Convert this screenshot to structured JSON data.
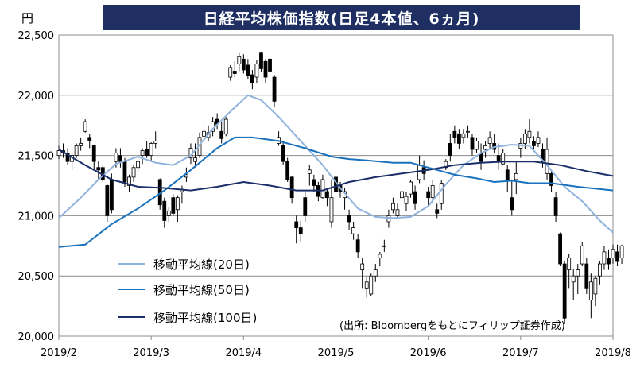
{
  "chart_data": {
    "type": "candlestick",
    "title": "日経平均株価指数(日足4本値、6ヵ月)",
    "unit": "円",
    "source_note": "(出所: Bloombergをもとにフィリップ証券作成)",
    "ylim": [
      20000,
      22500
    ],
    "y_ticks": [
      "20,000",
      "20,500",
      "21,000",
      "21,500",
      "22,000",
      "22,500"
    ],
    "y_tick_values": [
      20000,
      20500,
      21000,
      21500,
      22000,
      22500
    ],
    "x_ticks": [
      "2019/2",
      "2019/3",
      "2019/4",
      "2019/5",
      "2019/6",
      "2019/7",
      "2019/8"
    ],
    "x_tick_positions": [
      0,
      21,
      42,
      63,
      84,
      105,
      126
    ],
    "x_count": 127,
    "grid": "horizontal",
    "legend_position": "bottom-left",
    "colors": {
      "up": "#ffffff",
      "down": "#000000",
      "ma20": "#8fb3dd",
      "ma50": "#1a72bd",
      "ma100": "#1a2f68",
      "title_bg": "#1f2f62"
    },
    "series": [
      {
        "name": "移動平均線(20日)",
        "color": "#8fb3dd",
        "points": [
          [
            0,
            20980
          ],
          [
            5,
            21150
          ],
          [
            9,
            21300
          ],
          [
            13,
            21430
          ],
          [
            18,
            21490
          ],
          [
            22,
            21440
          ],
          [
            26,
            21420
          ],
          [
            30,
            21500
          ],
          [
            35,
            21720
          ],
          [
            40,
            21900
          ],
          [
            43,
            22000
          ],
          [
            46,
            21960
          ],
          [
            50,
            21820
          ],
          [
            55,
            21620
          ],
          [
            60,
            21420
          ],
          [
            64,
            21230
          ],
          [
            68,
            21060
          ],
          [
            72,
            20990
          ],
          [
            76,
            20980
          ],
          [
            80,
            20990
          ],
          [
            84,
            21080
          ],
          [
            88,
            21260
          ],
          [
            92,
            21420
          ],
          [
            96,
            21520
          ],
          [
            99,
            21570
          ],
          [
            103,
            21590
          ],
          [
            107,
            21580
          ],
          [
            111,
            21420
          ],
          [
            115,
            21240
          ],
          [
            119,
            21120
          ],
          [
            123,
            20960
          ],
          [
            126,
            20860
          ]
        ]
      },
      {
        "name": "移動平均線(50日)",
        "color": "#1a72bd",
        "points": [
          [
            0,
            20740
          ],
          [
            6,
            20760
          ],
          [
            12,
            20930
          ],
          [
            18,
            21060
          ],
          [
            24,
            21210
          ],
          [
            30,
            21380
          ],
          [
            36,
            21560
          ],
          [
            40,
            21650
          ],
          [
            44,
            21650
          ],
          [
            50,
            21620
          ],
          [
            56,
            21560
          ],
          [
            62,
            21490
          ],
          [
            66,
            21470
          ],
          [
            70,
            21460
          ],
          [
            76,
            21440
          ],
          [
            80,
            21440
          ],
          [
            85,
            21390
          ],
          [
            90,
            21340
          ],
          [
            95,
            21310
          ],
          [
            99,
            21280
          ],
          [
            103,
            21290
          ],
          [
            107,
            21270
          ],
          [
            112,
            21270
          ],
          [
            118,
            21240
          ],
          [
            126,
            21210
          ]
        ]
      },
      {
        "name": "移動平均線(100日)",
        "color": "#1a2f68",
        "points": [
          [
            0,
            21550
          ],
          [
            6,
            21420
          ],
          [
            12,
            21300
          ],
          [
            18,
            21240
          ],
          [
            24,
            21230
          ],
          [
            30,
            21210
          ],
          [
            36,
            21240
          ],
          [
            42,
            21280
          ],
          [
            48,
            21250
          ],
          [
            54,
            21210
          ],
          [
            60,
            21210
          ],
          [
            66,
            21280
          ],
          [
            72,
            21320
          ],
          [
            78,
            21350
          ],
          [
            84,
            21380
          ],
          [
            90,
            21420
          ],
          [
            96,
            21440
          ],
          [
            102,
            21450
          ],
          [
            108,
            21450
          ],
          [
            114,
            21420
          ],
          [
            120,
            21370
          ],
          [
            126,
            21330
          ]
        ]
      }
    ],
    "candles": [
      [
        21500,
        21580,
        21470,
        21540
      ],
      [
        21540,
        21600,
        21480,
        21520
      ],
      [
        21520,
        21560,
        21420,
        21450
      ],
      [
        21450,
        21520,
        21380,
        21500
      ],
      [
        21500,
        21600,
        21480,
        21580
      ],
      [
        21580,
        21650,
        21540,
        21600
      ],
      [
        21700,
        21800,
        21690,
        21780
      ],
      [
        21650,
        21680,
        21560,
        21620
      ],
      [
        21580,
        21590,
        21380,
        21450
      ],
      [
        21400,
        21450,
        21300,
        21380
      ],
      [
        21400,
        21420,
        21280,
        21300
      ],
      [
        21250,
        21260,
        20950,
        21000
      ],
      [
        21300,
        21350,
        21020,
        21050
      ],
      [
        21450,
        21560,
        21400,
        21520
      ],
      [
        21500,
        21560,
        21400,
        21450
      ],
      [
        21450,
        21480,
        21240,
        21280
      ],
      [
        21250,
        21340,
        21200,
        21320
      ],
      [
        21320,
        21420,
        21280,
        21400
      ],
      [
        21400,
        21480,
        21360,
        21450
      ],
      [
        21500,
        21560,
        21430,
        21540
      ],
      [
        21550,
        21620,
        21480,
        21500
      ],
      [
        21500,
        21610,
        21460,
        21600
      ],
      [
        21600,
        21700,
        21560,
        21620
      ],
      [
        21300,
        21310,
        21050,
        21090
      ],
      [
        21120,
        21150,
        20900,
        20960
      ],
      [
        21000,
        21070,
        20950,
        21040
      ],
      [
        21150,
        21180,
        21000,
        21020
      ],
      [
        21050,
        21170,
        20950,
        21150
      ],
      [
        21200,
        21250,
        21100,
        21220
      ],
      [
        21320,
        21400,
        21280,
        21340
      ],
      [
        21480,
        21600,
        21430,
        21560
      ],
      [
        21450,
        21600,
        21400,
        21480
      ],
      [
        21500,
        21690,
        21480,
        21650
      ],
      [
        21660,
        21740,
        21620,
        21700
      ],
      [
        21650,
        21750,
        21620,
        21690
      ],
      [
        21700,
        21820,
        21660,
        21780
      ],
      [
        21800,
        21850,
        21720,
        21760
      ],
      [
        21700,
        21780,
        21600,
        21640
      ],
      [
        21680,
        21820,
        21660,
        21800
      ],
      [
        22150,
        22250,
        22120,
        22230
      ],
      [
        22200,
        22280,
        22150,
        22180
      ],
      [
        22260,
        22350,
        22200,
        22320
      ],
      [
        22300,
        22340,
        22180,
        22210
      ],
      [
        22250,
        22300,
        22130,
        22160
      ],
      [
        22170,
        22210,
        22050,
        22100
      ],
      [
        22150,
        22290,
        22100,
        22260
      ],
      [
        22350,
        22360,
        22190,
        22220
      ],
      [
        22280,
        22300,
        22100,
        22150
      ],
      [
        22300,
        22330,
        22170,
        22200
      ],
      [
        22150,
        22170,
        21900,
        21950
      ],
      [
        21600,
        21700,
        21580,
        21650
      ],
      [
        21580,
        21620,
        21420,
        21450
      ],
      [
        21450,
        21480,
        21280,
        21300
      ],
      [
        21320,
        21330,
        21100,
        21150
      ],
      [
        20950,
        21000,
        20770,
        20900
      ],
      [
        20900,
        20960,
        20780,
        20850
      ],
      [
        21150,
        21200,
        20950,
        21000
      ],
      [
        21350,
        21420,
        21250,
        21380
      ],
      [
        21300,
        21340,
        21200,
        21250
      ],
      [
        21250,
        21280,
        21120,
        21160
      ],
      [
        21150,
        21340,
        21140,
        21300
      ],
      [
        21200,
        21220,
        21080,
        21150
      ],
      [
        20950,
        21300,
        20900,
        21150
      ],
      [
        21320,
        21350,
        21180,
        21200
      ],
      [
        21250,
        21280,
        21150,
        21200
      ],
      [
        21150,
        21230,
        21050,
        21200
      ],
      [
        21000,
        21050,
        20880,
        20950
      ],
      [
        20850,
        20950,
        20800,
        20900
      ],
      [
        20800,
        20850,
        20650,
        20700
      ],
      [
        20550,
        20650,
        20400,
        20600
      ],
      [
        20400,
        20500,
        20320,
        20450
      ],
      [
        20350,
        20520,
        20330,
        20500
      ],
      [
        20500,
        20600,
        20450,
        20550
      ],
      [
        20650,
        20700,
        20580,
        20680
      ],
      [
        20750,
        20800,
        20700,
        20750
      ],
      [
        20950,
        21050,
        20900,
        21000
      ],
      [
        21050,
        21150,
        21020,
        21100
      ],
      [
        21000,
        21100,
        20970,
        21050
      ],
      [
        21150,
        21270,
        21080,
        21200
      ],
      [
        21100,
        21200,
        21040,
        21160
      ],
      [
        21180,
        21300,
        21150,
        21280
      ],
      [
        21200,
        21250,
        21050,
        21100
      ],
      [
        21300,
        21500,
        21270,
        21420
      ],
      [
        21400,
        21460,
        21300,
        21350
      ],
      [
        21200,
        21240,
        21080,
        21150
      ],
      [
        21150,
        21300,
        21100,
        21250
      ],
      [
        21050,
        21100,
        20980,
        21020
      ],
      [
        21100,
        21300,
        21050,
        21270
      ],
      [
        21400,
        21470,
        21380,
        21450
      ],
      [
        21600,
        21680,
        21450,
        21500
      ],
      [
        21700,
        21750,
        21600,
        21650
      ],
      [
        21680,
        21720,
        21550,
        21600
      ],
      [
        21650,
        21720,
        21600,
        21680
      ],
      [
        21700,
        21750,
        21650,
        21700
      ],
      [
        21650,
        21680,
        21500,
        21550
      ],
      [
        21550,
        21650,
        21520,
        21620
      ],
      [
        21520,
        21600,
        21380,
        21450
      ],
      [
        21550,
        21620,
        21480,
        21580
      ],
      [
        21600,
        21700,
        21550,
        21650
      ],
      [
        21600,
        21680,
        21520,
        21550
      ],
      [
        21500,
        21600,
        21380,
        21450
      ],
      [
        21430,
        21550,
        21420,
        21520
      ],
      [
        21380,
        21420,
        21200,
        21300
      ],
      [
        21150,
        21300,
        21000,
        21050
      ],
      [
        21300,
        21450,
        21180,
        21350
      ],
      [
        21560,
        21650,
        21480,
        21600
      ],
      [
        21600,
        21720,
        21550,
        21680
      ],
      [
        21650,
        21800,
        21600,
        21700
      ],
      [
        21620,
        21660,
        21550,
        21580
      ],
      [
        21600,
        21700,
        21570,
        21650
      ],
      [
        21550,
        21600,
        21400,
        21450
      ],
      [
        21350,
        21650,
        21300,
        21550
      ],
      [
        21350,
        21380,
        21200,
        21250
      ],
      [
        21150,
        21200,
        20950,
        21000
      ],
      [
        20850,
        20860,
        20580,
        20600
      ],
      [
        20600,
        20620,
        20100,
        20150
      ],
      [
        20550,
        20680,
        20400,
        20650
      ],
      [
        20450,
        20560,
        20300,
        20500
      ],
      [
        20500,
        20600,
        20350,
        20550
      ],
      [
        20600,
        20780,
        20580,
        20750
      ],
      [
        20600,
        20650,
        20350,
        20400
      ],
      [
        20300,
        20520,
        20150,
        20450
      ],
      [
        20350,
        20500,
        20250,
        20480
      ],
      [
        20500,
        20620,
        20430,
        20600
      ],
      [
        20600,
        20750,
        20550,
        20700
      ],
      [
        20650,
        20720,
        20550,
        20600
      ],
      [
        20650,
        20760,
        20600,
        20720
      ],
      [
        20700,
        20760,
        20580,
        20620
      ],
      [
        20650,
        20760,
        20600,
        20750
      ]
    ]
  }
}
